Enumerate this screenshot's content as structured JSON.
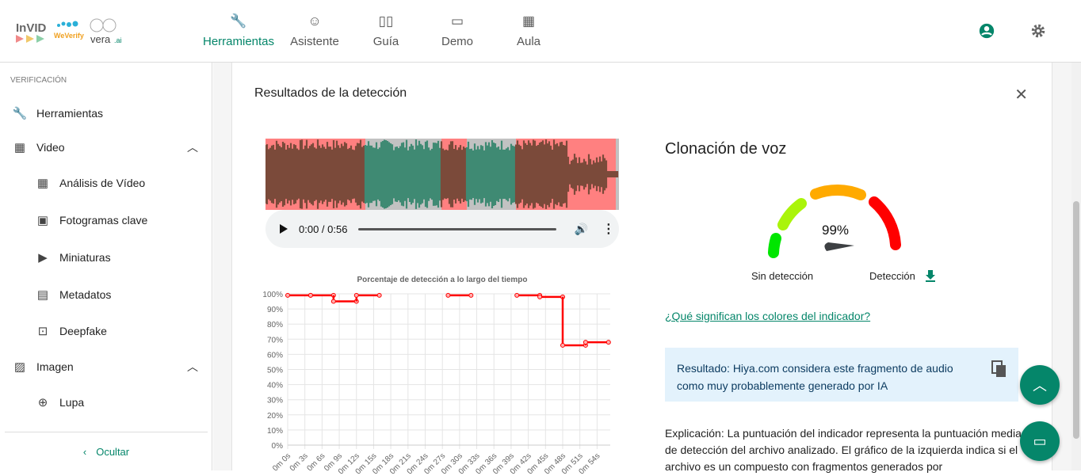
{
  "header": {
    "logos": [
      "InVID",
      "WeVerify",
      "vera.ai"
    ],
    "nav": [
      {
        "label": "Herramientas",
        "icon": "wrench-icon",
        "active": true
      },
      {
        "label": "Asistente",
        "icon": "robot-icon"
      },
      {
        "label": "Guía",
        "icon": "book-icon"
      },
      {
        "label": "Demo",
        "icon": "gamepad-icon"
      },
      {
        "label": "Aula",
        "icon": "classroom-icon"
      }
    ],
    "accent": "#05866a"
  },
  "sidebar": {
    "section": "VERIFICACIÓN",
    "items": [
      {
        "label": "Herramientas",
        "icon": "wrench-icon"
      },
      {
        "label": "Video",
        "icon": "film-icon",
        "expanded": true
      },
      {
        "label": "Análisis de Vídeo",
        "icon": "film-icon"
      },
      {
        "label": "Fotogramas clave",
        "icon": "frames-icon"
      },
      {
        "label": "Miniaturas",
        "icon": "youtube-icon"
      },
      {
        "label": "Metadatos",
        "icon": "file-icon"
      },
      {
        "label": "Deepfake",
        "icon": "face-scan-icon"
      },
      {
        "label": "Imagen",
        "icon": "image-icon",
        "expanded": true
      },
      {
        "label": "Lupa",
        "icon": "magnifier-icon"
      }
    ],
    "hide_label": "Ocultar"
  },
  "card": {
    "title": "Resultados de la detección",
    "player": {
      "time": "0:00 / 0:56"
    },
    "right_title": "Clonación de voz",
    "gauge": {
      "value_text": "99%",
      "value": 99,
      "left_label": "Sin detección",
      "right_label": "Detección",
      "colors": [
        "#00e600",
        "#aaf40a",
        "#ffaa00",
        "#ff0000"
      ]
    },
    "link": "¿Qué significan los colores del indicador?",
    "result": "Resultado: Hiya.com considera este fragmento de audio como muy probablemente generado por IA",
    "explanation": "Explicación: La puntuación del indicador representa la puntuación media de detección del archivo analizado. El gráfico de la izquierda indica si el archivo es un compuesto con fragmentos generados por"
  },
  "chart_data": {
    "type": "line",
    "title": "Porcentaje de detección a lo largo del tiempo",
    "xlabel": "",
    "ylabel": "",
    "ylim": [
      0,
      100
    ],
    "yticks": [
      "0%",
      "10%",
      "20%",
      "30%",
      "40%",
      "50%",
      "60%",
      "70%",
      "80%",
      "90%",
      "100%"
    ],
    "xticks": [
      "0m 0s",
      "0m 3s",
      "0m 6s",
      "0m 9s",
      "0m 12s",
      "0m 15s",
      "0m 18s",
      "0m 21s",
      "0m 24s",
      "0m 27s",
      "0m 30s",
      "0m 33s",
      "0m 36s",
      "0m 39s",
      "0m 42s",
      "0m 45s",
      "0m 48s",
      "0m 51s",
      "0m 54s"
    ],
    "segments": [
      {
        "start": 0,
        "end": 4,
        "value": 99
      },
      {
        "start": 4,
        "end": 8,
        "value": 99
      },
      {
        "start": 8,
        "end": 12,
        "value": 95
      },
      {
        "start": 12,
        "end": 16,
        "value": 99
      },
      {
        "start": 28,
        "end": 32,
        "value": 99
      },
      {
        "start": 40,
        "end": 44,
        "value": 99
      },
      {
        "start": 44,
        "end": 48,
        "value": 98
      },
      {
        "start": 48,
        "end": 52,
        "value": 66
      },
      {
        "start": 52,
        "end": 56,
        "value": 68
      }
    ],
    "color": "#ff0000",
    "grid": true
  }
}
